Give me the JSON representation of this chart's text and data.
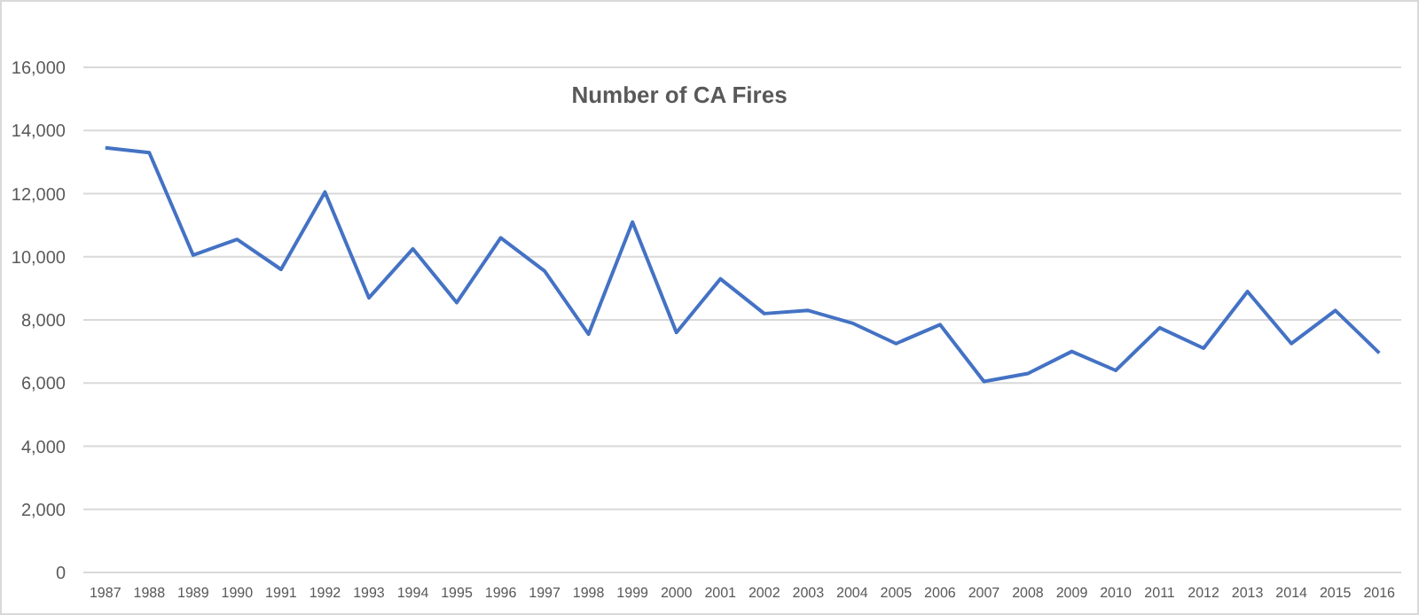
{
  "chart_data": {
    "type": "line",
    "title": "Number of CA Fires",
    "categories": [
      "1987",
      "1988",
      "1989",
      "1990",
      "1991",
      "1992",
      "1993",
      "1994",
      "1995",
      "1996",
      "1997",
      "1998",
      "1999",
      "2000",
      "2001",
      "2002",
      "2003",
      "2004",
      "2005",
      "2006",
      "2007",
      "2008",
      "2009",
      "2010",
      "2011",
      "2012",
      "2013",
      "2014",
      "2015",
      "2016"
    ],
    "series": [
      {
        "color": "#4472c4",
        "values": [
          13450,
          13300,
          10050,
          10550,
          9600,
          12050,
          8700,
          10250,
          8550,
          10600,
          9550,
          7550,
          11100,
          7600,
          9300,
          8200,
          8300,
          7900,
          7250,
          7850,
          6050,
          6300,
          7000,
          6400,
          7750,
          7100,
          8900,
          7250,
          8300,
          6950
        ]
      }
    ],
    "ylim": [
      0,
      16000
    ],
    "yticks": [
      {
        "value": 0,
        "label": "0"
      },
      {
        "value": 2000,
        "label": "2,000"
      },
      {
        "value": 4000,
        "label": "4,000"
      },
      {
        "value": 6000,
        "label": "6,000"
      },
      {
        "value": 8000,
        "label": "8,000"
      },
      {
        "value": 10000,
        "label": "10,000"
      },
      {
        "value": 12000,
        "label": "12,000"
      },
      {
        "value": 14000,
        "label": "14,000"
      },
      {
        "value": 16000,
        "label": "16,000"
      }
    ],
    "grid": "y",
    "marker": "none",
    "line_style": "solid"
  }
}
